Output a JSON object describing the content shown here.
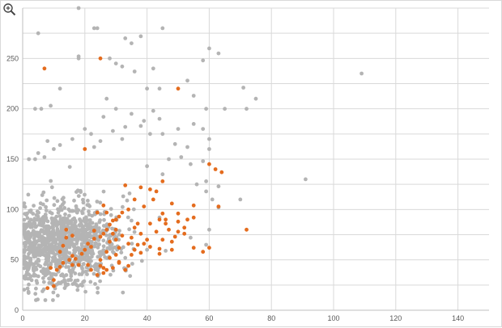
{
  "icons": {
    "zoom": "zoom-in-icon"
  },
  "colors": {
    "background": "#ffffff",
    "gridline": "#d9d9d9",
    "axis": "#bfbfbf",
    "series_gray": "#b4b4b4",
    "series_orange": "#e46c1e"
  },
  "chart_data": {
    "type": "scatter",
    "title": "",
    "xlabel": "",
    "ylabel": "",
    "xlim": [
      0,
      150
    ],
    "ylim": [
      0,
      300
    ],
    "x_ticks": [
      "0",
      "20",
      "40",
      "60",
      "80",
      "100",
      "120",
      "140"
    ],
    "y_ticks": [
      "0",
      "50",
      "100",
      "150",
      "200",
      "250"
    ],
    "grid": true,
    "legend": "none",
    "series": [
      {
        "color": "#b4b4b4",
        "points": [
          [
            5,
            275
          ],
          [
            18,
            300
          ],
          [
            18,
            250
          ],
          [
            18,
            252
          ],
          [
            23,
            280
          ],
          [
            24,
            280
          ],
          [
            28,
            250
          ],
          [
            33,
            270
          ],
          [
            35,
            265
          ],
          [
            38,
            272
          ],
          [
            45,
            280
          ],
          [
            60,
            260
          ],
          [
            63,
            255
          ],
          [
            32,
            242
          ],
          [
            30,
            245
          ],
          [
            36,
            237
          ],
          [
            42,
            240
          ],
          [
            58,
            248
          ],
          [
            109,
            235
          ],
          [
            71,
            221
          ],
          [
            75,
            210
          ],
          [
            72,
            200
          ],
          [
            65,
            200
          ],
          [
            59,
            200
          ],
          [
            55,
            213
          ],
          [
            53,
            228
          ],
          [
            44,
            220
          ],
          [
            40,
            220
          ],
          [
            12,
            220
          ],
          [
            9,
            203
          ],
          [
            6,
            200
          ],
          [
            4,
            200
          ],
          [
            50,
            180
          ],
          [
            55,
            185
          ],
          [
            58,
            180
          ],
          [
            60,
            170
          ],
          [
            49,
            165
          ],
          [
            60,
            160
          ],
          [
            53,
            162
          ],
          [
            42,
            198
          ],
          [
            41,
            175
          ],
          [
            39,
            188
          ],
          [
            35,
            195
          ],
          [
            30,
            200
          ],
          [
            27,
            210
          ],
          [
            26,
            192
          ],
          [
            22,
            175
          ],
          [
            20,
            180
          ],
          [
            23,
            162
          ],
          [
            25,
            168
          ],
          [
            29,
            178
          ],
          [
            32,
            170
          ],
          [
            45,
            175
          ],
          [
            38,
            183
          ],
          [
            44,
            190
          ],
          [
            33,
            182
          ],
          [
            8,
            168
          ],
          [
            12,
            164
          ],
          [
            16,
            170
          ],
          [
            10,
            160
          ],
          [
            5,
            156
          ],
          [
            2,
            150
          ],
          [
            4,
            150
          ],
          [
            7,
            152
          ],
          [
            47,
            150
          ],
          [
            51,
            152
          ],
          [
            58,
            148
          ],
          [
            59,
            128
          ],
          [
            63,
            123
          ],
          [
            61,
            110
          ],
          [
            63,
            102
          ],
          [
            45,
            135
          ],
          [
            40,
            143
          ],
          [
            54,
            145
          ],
          [
            59,
            118
          ],
          [
            56,
            125
          ],
          [
            70,
            110
          ],
          [
            91,
            130
          ],
          [
            14,
            60
          ],
          [
            22,
            61
          ],
          [
            29,
            58
          ],
          [
            33,
            52
          ],
          [
            40,
            60
          ],
          [
            46,
            59
          ],
          [
            54,
            72
          ],
          [
            59,
            65
          ],
          [
            60,
            80
          ],
          [
            35,
            89
          ],
          [
            44,
            92
          ]
        ],
        "cluster": {
          "x_center": 12,
          "y_center": 65,
          "count": 1100,
          "x_min": 0.5,
          "x_max": 48,
          "y_min": 10,
          "y_max": 160
        }
      },
      {
        "color": "#e46c1e",
        "points": [
          [
            7,
            240
          ],
          [
            25,
            250
          ],
          [
            50,
            220
          ],
          [
            20,
            160
          ],
          [
            60,
            145
          ],
          [
            62,
            140
          ],
          [
            64,
            137
          ],
          [
            63,
            103
          ],
          [
            55,
            104
          ],
          [
            55,
            92
          ],
          [
            48,
            106
          ],
          [
            50,
            96
          ],
          [
            45,
            128
          ],
          [
            43,
            118
          ],
          [
            42,
            110
          ],
          [
            41,
            120
          ],
          [
            38,
            122
          ],
          [
            33,
            124
          ],
          [
            36,
            110
          ],
          [
            39,
            103
          ],
          [
            34,
            100
          ],
          [
            32,
            97
          ],
          [
            31,
            93
          ],
          [
            27,
            97
          ],
          [
            26,
            104
          ],
          [
            24,
            97
          ],
          [
            29,
            89
          ],
          [
            30,
            90
          ],
          [
            28,
            85
          ],
          [
            27,
            80
          ],
          [
            26,
            76
          ],
          [
            25,
            73
          ],
          [
            23,
            79
          ],
          [
            23,
            71
          ],
          [
            21,
            66
          ],
          [
            22,
            63
          ],
          [
            20,
            60
          ],
          [
            19,
            56
          ],
          [
            17,
            51
          ],
          [
            16,
            54
          ],
          [
            15,
            50
          ],
          [
            13,
            47
          ],
          [
            12,
            43
          ],
          [
            11,
            40
          ],
          [
            9,
            42
          ],
          [
            10,
            30
          ],
          [
            8,
            22
          ],
          [
            10,
            24
          ],
          [
            13,
            64
          ],
          [
            12,
            58
          ],
          [
            14,
            72
          ],
          [
            16,
            74
          ],
          [
            14,
            80
          ],
          [
            18,
            45
          ],
          [
            16,
            45
          ],
          [
            21,
            45
          ],
          [
            26,
            42
          ],
          [
            27,
            40
          ],
          [
            29,
            42
          ],
          [
            31,
            47
          ],
          [
            33,
            40
          ],
          [
            34,
            44
          ],
          [
            35,
            55
          ],
          [
            36,
            60
          ],
          [
            37,
            65
          ],
          [
            38,
            57
          ],
          [
            39,
            66
          ],
          [
            41,
            63
          ],
          [
            44,
            61
          ],
          [
            44,
            56
          ],
          [
            45,
            70
          ],
          [
            47,
            80
          ],
          [
            48,
            68
          ],
          [
            49,
            73
          ],
          [
            50,
            78
          ],
          [
            52,
            82
          ],
          [
            52,
            76
          ],
          [
            55,
            62
          ],
          [
            53,
            90
          ],
          [
            50,
            88
          ],
          [
            46,
            90
          ],
          [
            48,
            60
          ],
          [
            58,
            58
          ],
          [
            60,
            62
          ],
          [
            72,
            80
          ],
          [
            30,
            70
          ],
          [
            31,
            62
          ],
          [
            32,
            74
          ],
          [
            34,
            66
          ],
          [
            35,
            72
          ],
          [
            36,
            82
          ],
          [
            37,
            86
          ],
          [
            38,
            76
          ],
          [
            40,
            70
          ],
          [
            41,
            86
          ],
          [
            43,
            78
          ],
          [
            44,
            90
          ],
          [
            45,
            96
          ],
          [
            46,
            86
          ],
          [
            27,
            58
          ],
          [
            28,
            52
          ],
          [
            30,
            55
          ],
          [
            31,
            48
          ],
          [
            25,
            50
          ],
          [
            24,
            35
          ],
          [
            22,
            40
          ],
          [
            25,
            44
          ],
          [
            26,
            37
          ],
          [
            28,
            68
          ],
          [
            29,
            76
          ],
          [
            30,
            80
          ]
        ]
      }
    ]
  }
}
